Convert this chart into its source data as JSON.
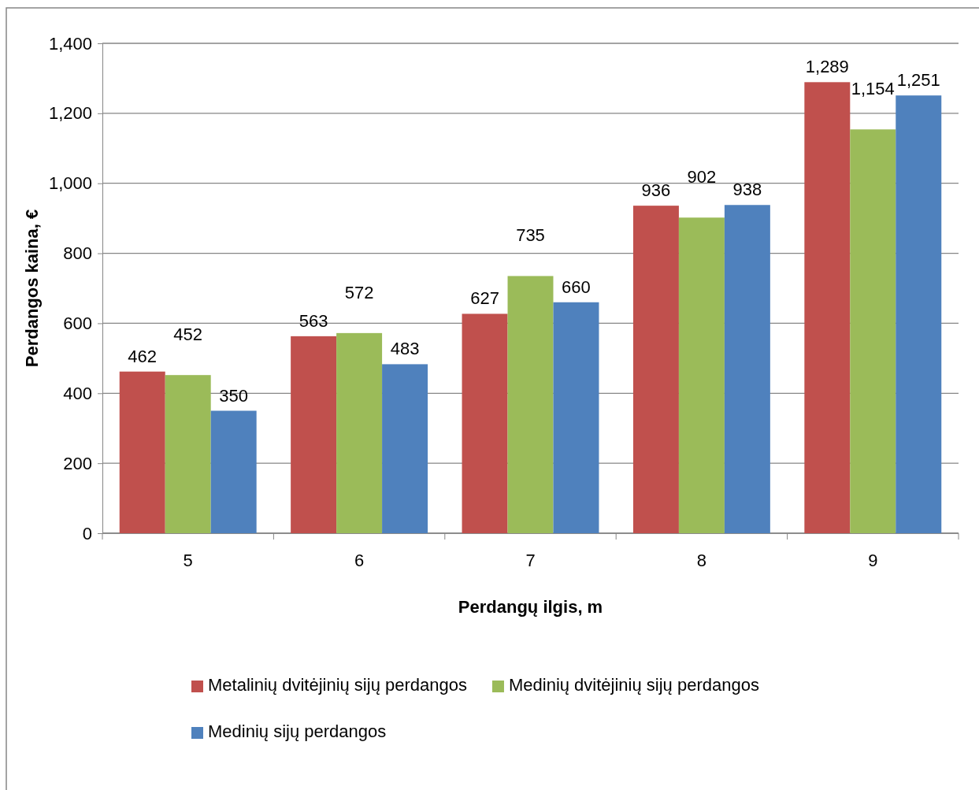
{
  "chart_data": {
    "type": "bar",
    "xlabel": "Perdangų ilgis, m",
    "ylabel": "Perdangos kaina, €",
    "categories": [
      "5",
      "6",
      "7",
      "8",
      "9"
    ],
    "series": [
      {
        "name": "Metalinių dvitėjinių sijų perdangos",
        "color": "#c0504d",
        "values": [
          462,
          563,
          627,
          936,
          1289
        ],
        "value_labels": [
          "462",
          "563",
          "627",
          "936",
          "1,289"
        ]
      },
      {
        "name": "Medinių dvitėjinių sijų perdangos",
        "color": "#9bbb59",
        "values": [
          452,
          572,
          735,
          902,
          1154
        ],
        "value_labels": [
          "452",
          "572",
          "735",
          "902",
          "1,154"
        ]
      },
      {
        "name": "Medinių sijų perdangos",
        "color": "#4f81bd",
        "values": [
          350,
          483,
          660,
          938,
          1251
        ],
        "value_labels": [
          "350",
          "483",
          "660",
          "938",
          "1,251"
        ]
      }
    ],
    "ylim": [
      0,
      1400
    ],
    "yticks": [
      {
        "value": 0,
        "label": "0"
      },
      {
        "value": 200,
        "label": "200"
      },
      {
        "value": 400,
        "label": "400"
      },
      {
        "value": 600,
        "label": "600"
      },
      {
        "value": 800,
        "label": "800"
      },
      {
        "value": 1000,
        "label": "1,000"
      },
      {
        "value": 1200,
        "label": "1,200"
      },
      {
        "value": 1400,
        "label": "1,400"
      }
    ],
    "grid": "y",
    "legend": "bottom"
  }
}
